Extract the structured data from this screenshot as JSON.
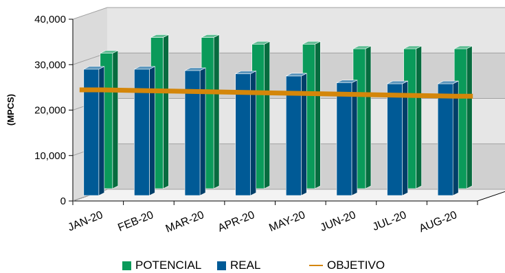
{
  "chart_data": {
    "type": "bar",
    "categories": [
      "JAN-20",
      "FEB-20",
      "MAR-20",
      "APR-20",
      "MAY-20",
      "JUN-20",
      "JUL-20",
      "AUG-20"
    ],
    "series": [
      {
        "name": "POTENCIAL",
        "type": "bar",
        "color": "#0a9a5a",
        "values": [
          31000,
          34500,
          34500,
          33000,
          33000,
          32000,
          32000,
          32000
        ]
      },
      {
        "name": "REAL",
        "type": "bar",
        "color": "#005a96",
        "values": [
          29000,
          29000,
          28700,
          28000,
          27500,
          26000,
          25800,
          25800
        ]
      },
      {
        "name": "OBJETIVO",
        "type": "line",
        "color": "#d4860a",
        "values": [
          24000,
          23800,
          23600,
          23400,
          23200,
          23000,
          22800,
          22600
        ]
      }
    ],
    "ylabel": "(MPCS)",
    "xlabel": "",
    "ylim": [
      0,
      40000
    ],
    "yticks": [
      0,
      10000,
      20000,
      30000,
      40000
    ],
    "ytick_labels": [
      "0",
      "10,000",
      "20,000",
      "30,000",
      "40,000"
    ],
    "grid": true,
    "legend_position": "bottom",
    "style": "3d-clustered"
  },
  "legend": {
    "potencial": "POTENCIAL",
    "real": "REAL",
    "objetivo": "OBJETIVO"
  }
}
